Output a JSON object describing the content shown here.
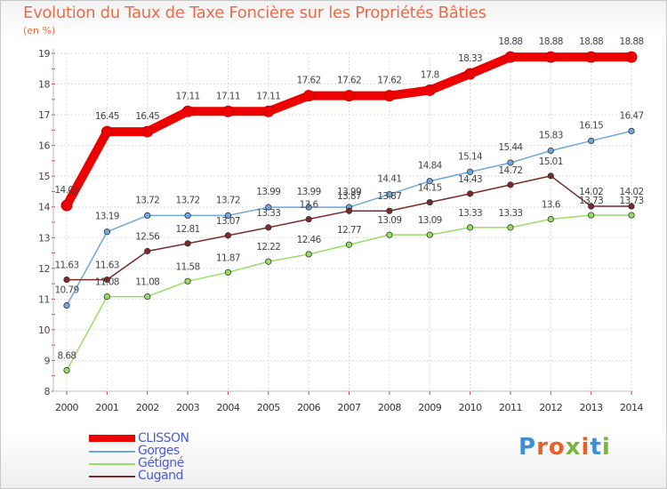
{
  "title": "Evolution du Taux de Taxe Foncière sur les Propriétés Bâties",
  "subtitle": "(en %)",
  "logo": {
    "text": "Proxiti",
    "colors": [
      "#3d8fd6",
      "#e8612c",
      "#e8612c",
      "#7ab63f",
      "#e8612c",
      "#3d8fd6",
      "#7ab63f"
    ]
  },
  "chart_data": {
    "type": "line",
    "title": "Evolution du Taux de Taxe Foncière sur les Propriétés Bâties",
    "ylabel": "(en %)",
    "xlabel": "",
    "ylim": [
      8,
      19
    ],
    "yticks": [
      "8",
      "9",
      "10",
      "11",
      "12",
      "13",
      "14",
      "15",
      "16",
      "17",
      "18",
      "19"
    ],
    "categories": [
      "2000",
      "2001",
      "2002",
      "2003",
      "2004",
      "2005",
      "2006",
      "2007",
      "2008",
      "2009",
      "2010",
      "2011",
      "2012",
      "2013",
      "2014"
    ],
    "grid": true,
    "legend": "bottom-left",
    "series": [
      {
        "name": "CLISSON",
        "color": "#ee0000",
        "values": [
          14.05,
          16.45,
          16.45,
          17.11,
          17.11,
          17.11,
          17.62,
          17.62,
          17.62,
          17.8,
          18.33,
          18.88,
          18.88,
          18.88,
          18.88
        ],
        "labels": [
          "14.05",
          "16.45",
          "16.45",
          "17.11",
          "17.11",
          "17.11",
          "17.62",
          "17.62",
          "17.62",
          "17.8",
          "18.33",
          "18.88",
          "18.88",
          "18.88",
          "18.88"
        ]
      },
      {
        "name": "Gorges",
        "color": "#6fa8dc",
        "values": [
          10.79,
          13.19,
          13.72,
          13.72,
          13.72,
          13.99,
          13.99,
          13.99,
          14.41,
          14.84,
          15.14,
          15.44,
          15.83,
          16.15,
          16.47
        ],
        "labels": [
          "10.79",
          "13.19",
          "13.72",
          "13.72",
          "13.72",
          "13.99",
          "13.99",
          "13.99",
          "14.41",
          "14.84",
          "15.14",
          "15.44",
          "15.83",
          "16.15",
          "16.47"
        ]
      },
      {
        "name": "Gétigné",
        "color": "#99dd66",
        "values": [
          8.68,
          11.08,
          11.08,
          11.58,
          11.87,
          12.22,
          12.46,
          12.77,
          13.09,
          13.09,
          13.33,
          13.33,
          13.6,
          13.73,
          13.73
        ],
        "labels": [
          "8.68",
          "11.08",
          "11.08",
          "11.58",
          "11.87",
          "12.22",
          "12.46",
          "12.77",
          "13.09",
          "13.09",
          "13.33",
          "13.33",
          "13.6",
          "13.73",
          "13.73"
        ]
      },
      {
        "name": "Cugand",
        "color": "#7a2a2a",
        "values": [
          11.63,
          11.63,
          12.56,
          12.81,
          13.07,
          13.33,
          13.6,
          13.87,
          13.87,
          14.15,
          14.43,
          14.72,
          15.01,
          14.02,
          14.02
        ],
        "labels": [
          "11.63",
          "11.63",
          "12.56",
          "12.81",
          "13.07",
          "13.33",
          "13.6",
          "13.87",
          "13.87",
          "14.15",
          "14.43",
          "14.72",
          "15.01",
          "14.02",
          "14.02"
        ]
      }
    ]
  }
}
